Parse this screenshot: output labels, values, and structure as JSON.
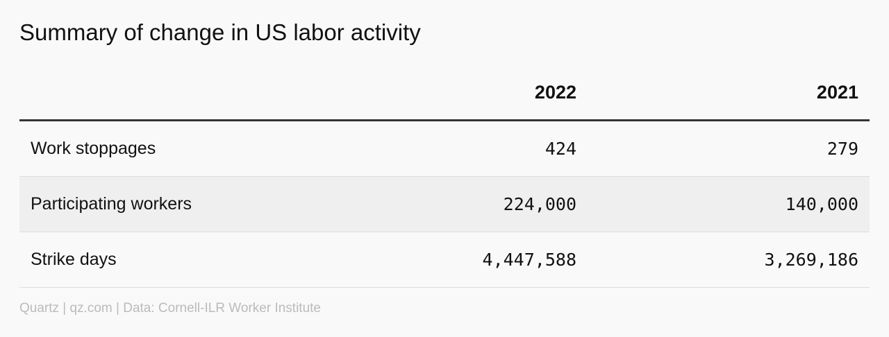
{
  "title": "Summary of change in US labor activity",
  "table": {
    "header": [
      "2022",
      "2021"
    ],
    "rows": [
      [
        "Work stoppages",
        "424",
        "279"
      ],
      [
        "Participating workers",
        "224,000",
        "140,000"
      ],
      [
        "Strike days",
        "4,447,588",
        "3,269,186"
      ]
    ]
  },
  "footer": "Quartz | qz.com | Data: Cornell-ILR Worker Institute"
}
